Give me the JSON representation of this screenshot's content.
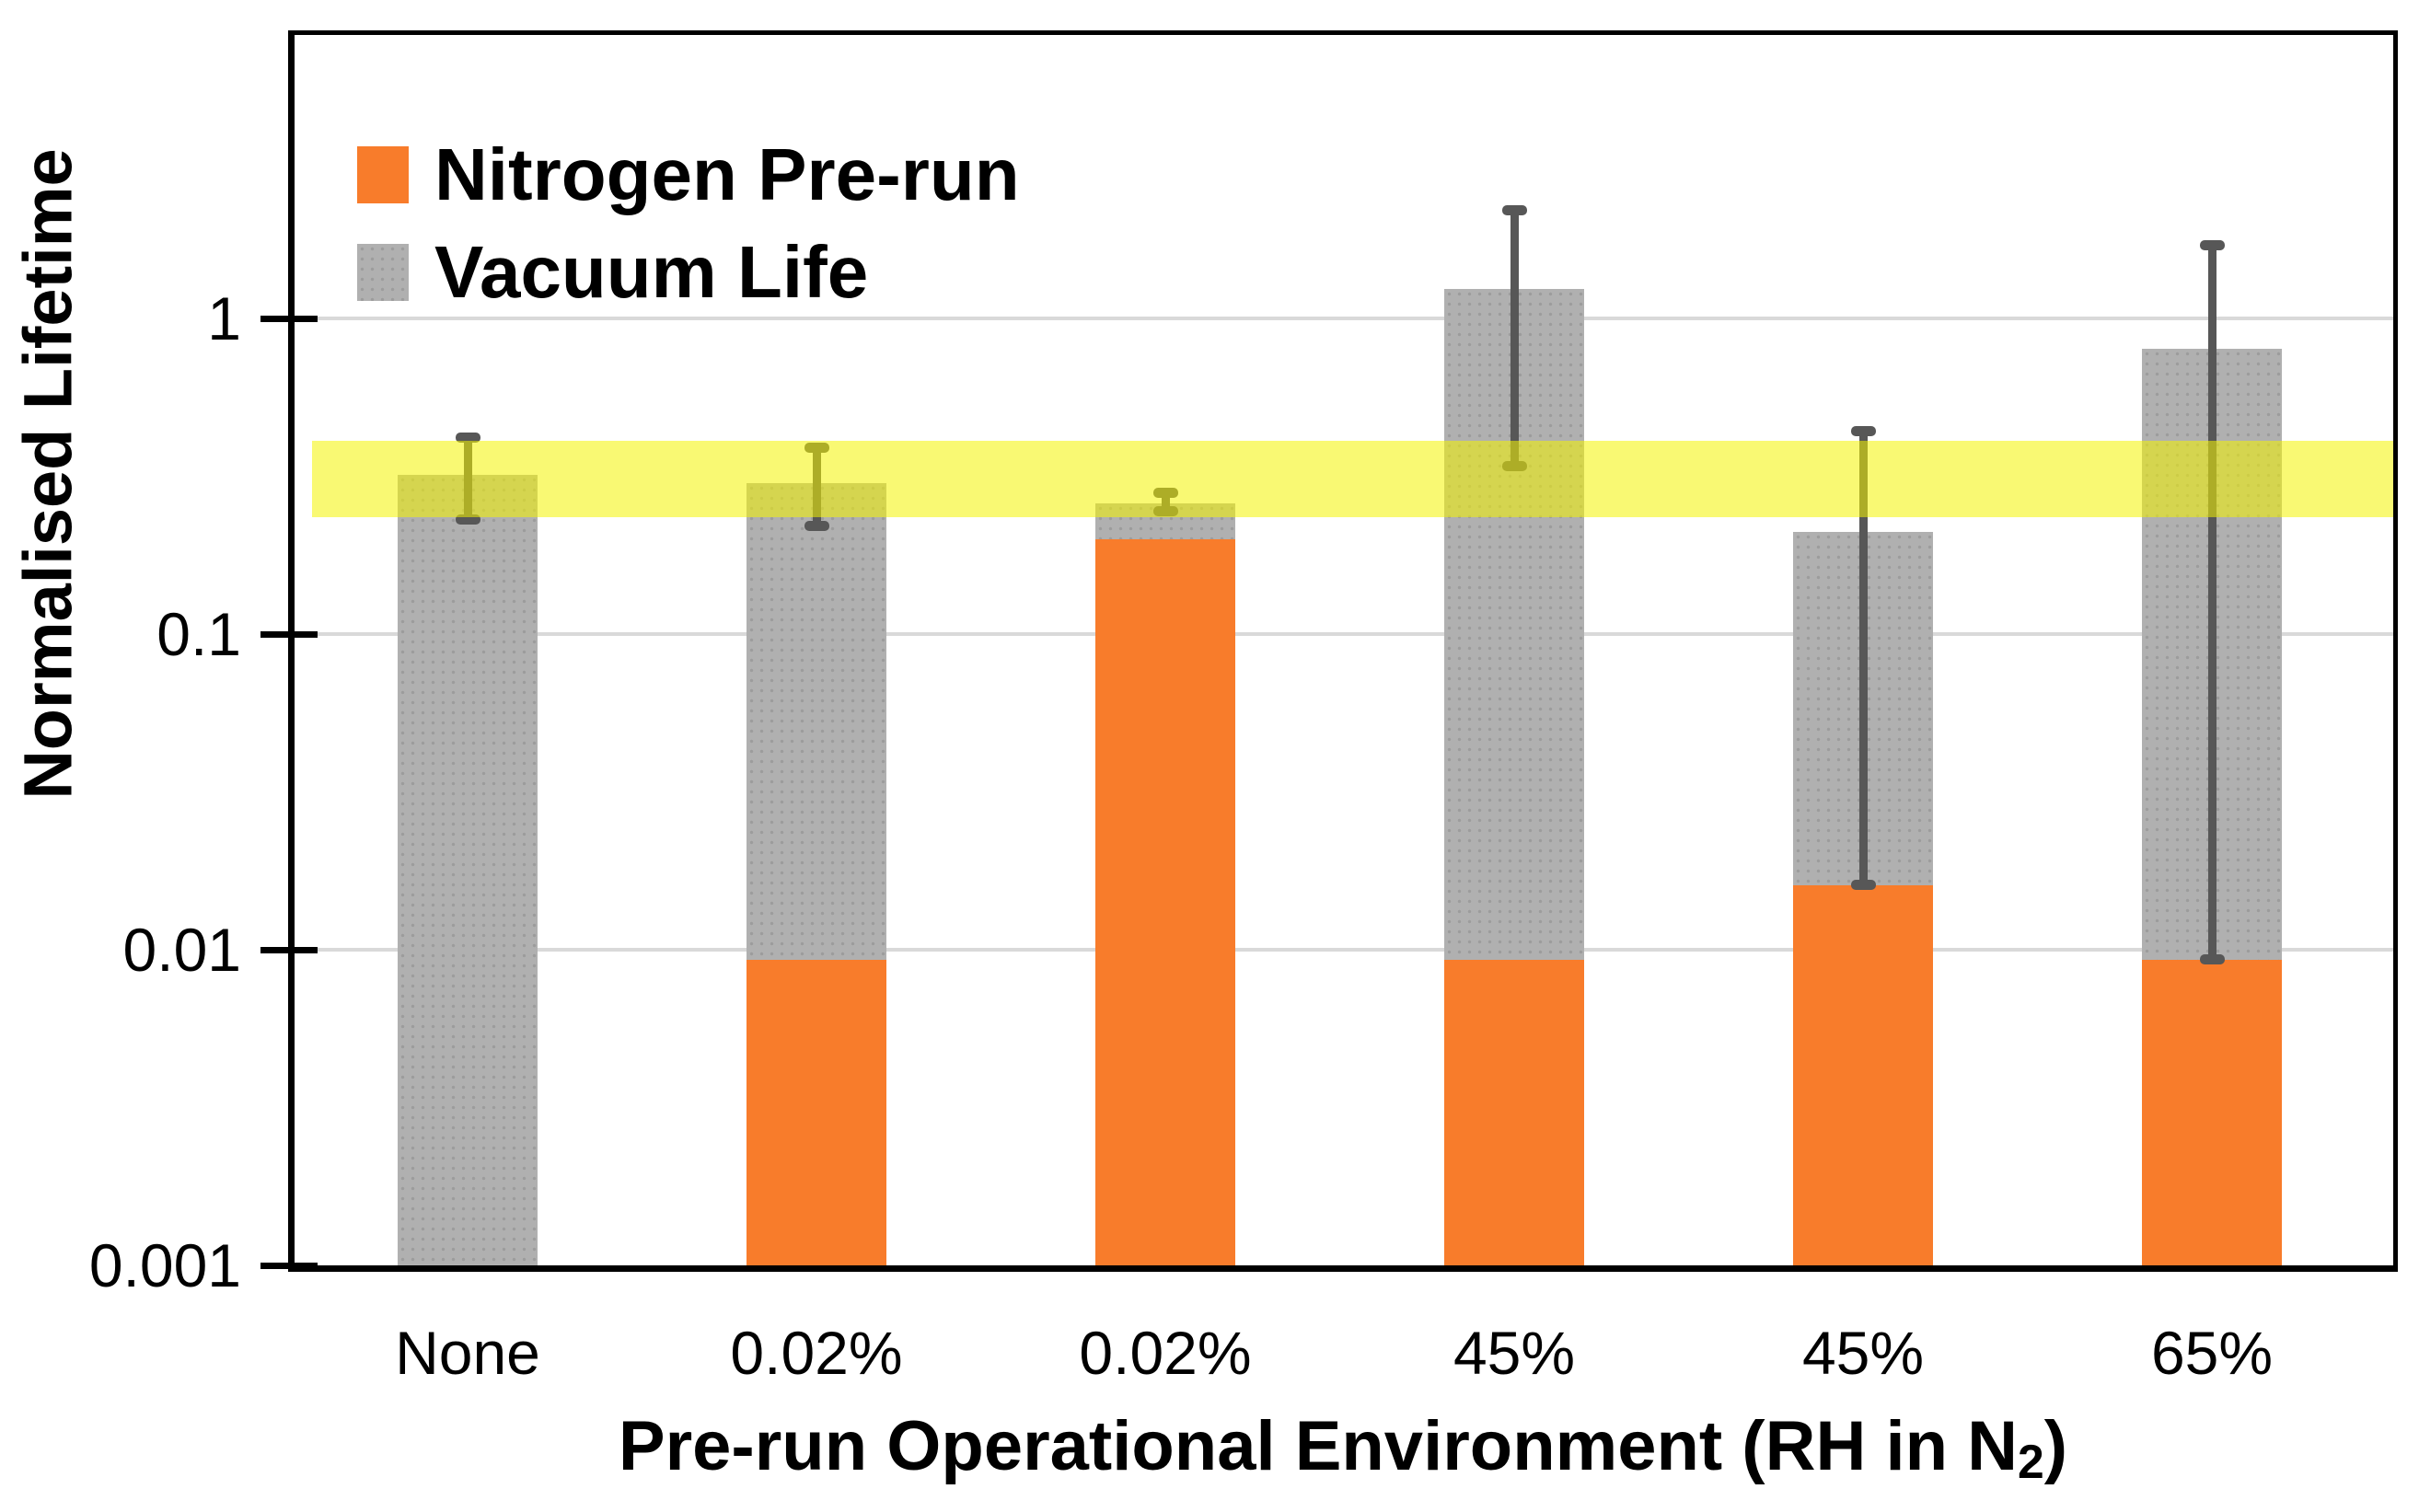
{
  "chart_data": {
    "type": "bar",
    "stacked": true,
    "log_scale_y": true,
    "title": "",
    "xlabel": {
      "prefix": "Pre-run Operational Environment (RH in N",
      "subscript": "2",
      "suffix": ")"
    },
    "ylabel": "Normalised Lifetime",
    "ylim": [
      0.001,
      7.9
    ],
    "yticks": [
      {
        "label": "1",
        "value": 1
      },
      {
        "label": "0.1",
        "value": 0.1
      },
      {
        "label": "0.01",
        "value": 0.01
      },
      {
        "label": "0.001",
        "value": 0.001
      }
    ],
    "categories": [
      "None",
      "0.02%",
      "0.02%",
      "45%",
      "45%",
      "65%"
    ],
    "series": [
      {
        "name": "Nitrogen Pre-run",
        "color": "#F87C2B",
        "values": [
          null,
          0.0093,
          0.2,
          0.0093,
          0.016,
          0.0093
        ],
        "note": "top of orange segment, bars start at 0.001"
      },
      {
        "name": "Vacuum Life",
        "color": "#B0B0B0",
        "values": [
          0.32,
          0.3,
          0.26,
          1.24,
          0.21,
          0.8
        ],
        "note": "top of stacked bar (gray segment ends here)"
      }
    ],
    "error_bars": [
      {
        "low": 0.23,
        "high": 0.42
      },
      {
        "low": 0.22,
        "high": 0.39
      },
      {
        "low": 0.245,
        "high": 0.28
      },
      {
        "low": 0.34,
        "high": 2.2
      },
      {
        "low": 0.016,
        "high": 0.44
      },
      {
        "low": 0.0093,
        "high": 1.7
      }
    ],
    "error_bar_color": "#575757",
    "highlight_band": {
      "low": 0.235,
      "high": 0.41,
      "color": "rgba(244,244,0,0.55)"
    },
    "gridline_color": "#D9D9D9",
    "grid": true,
    "legend_position": "top-left"
  }
}
